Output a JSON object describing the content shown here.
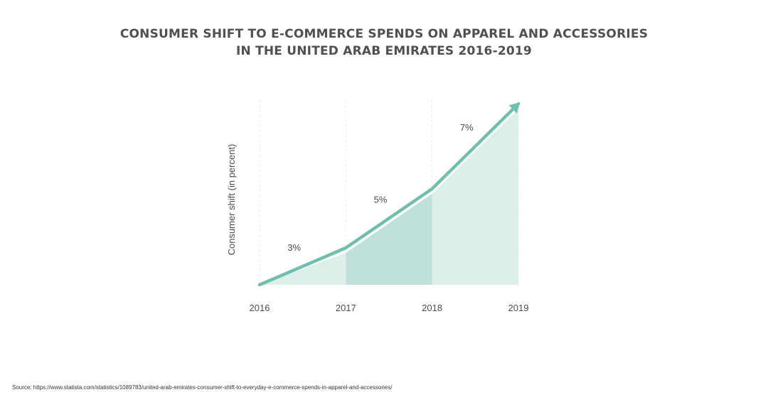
{
  "title_line1": "CONSUMER SHIFT TO E-COMMERCE SPENDS ON APPAREL AND ACCESSORIES",
  "title_line2": "IN THE UNITED ARAB EMIRATES 2016-2019",
  "source": "Source: https://www.statista.com/statistics/1089783/united-arab-emirates-consumer-shift-to-everyday-e-commerce-spends-in-apparel-and-accessories/",
  "colors": {
    "line": "#6fbeae",
    "area_light": "#ddefe9",
    "area_mid": "#bfe1da",
    "text": "#4d4d4d",
    "grid": "#e6e6e6"
  },
  "chart_data": {
    "type": "area",
    "title": "CONSUMER SHIFT TO E-COMMERCE SPENDS ON APPAREL AND ACCESSORIES IN THE UNITED ARAB EMIRATES 2016-2019",
    "xlabel": "",
    "ylabel": "Consumer shift (in percent)",
    "categories": [
      "2016",
      "2017",
      "2018",
      "2019"
    ],
    "values": [
      0,
      2,
      5.2,
      9.8
    ],
    "increments": [
      {
        "from": "2016",
        "to": "2017",
        "label": "3%"
      },
      {
        "from": "2017",
        "to": "2018",
        "label": "5%"
      },
      {
        "from": "2018",
        "to": "2019",
        "label": "7%"
      }
    ],
    "ylim": [
      0,
      10
    ],
    "grid": "vertical dashed",
    "legend": "none"
  }
}
